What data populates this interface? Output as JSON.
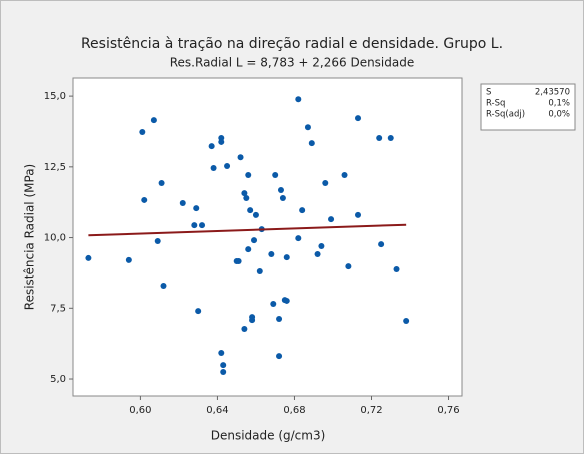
{
  "chart_data": {
    "type": "scatter",
    "title": "Resistência à tração na direção radial e densidade. Grupo L.",
    "subtitle": "Res.Radial L = 8,783 + 2,266 Densidade",
    "x_label": "Densidade (g/cm3)",
    "y_label": "Resistência Radial (MPa)",
    "xlim": [
      0.565,
      0.767
    ],
    "ylim": [
      4.4,
      15.64
    ],
    "xticks": [
      {
        "value": 0.6,
        "label": "0,60"
      },
      {
        "value": 0.64,
        "label": "0,64"
      },
      {
        "value": 0.68,
        "label": "0,68"
      },
      {
        "value": 0.72,
        "label": "0,72"
      },
      {
        "value": 0.76,
        "label": "0,76"
      }
    ],
    "yticks": [
      {
        "value": 5,
        "label": "5,0"
      },
      {
        "value": 7.5,
        "label": "7,5"
      },
      {
        "value": 10,
        "label": "10,0"
      },
      {
        "value": 12.5,
        "label": "12,5"
      },
      {
        "value": 15,
        "label": "15,0"
      }
    ],
    "color": "#0b5aa8",
    "x": [
      0.573,
      0.594,
      0.601,
      0.602,
      0.607,
      0.609,
      0.611,
      0.612,
      0.622,
      0.628,
      0.629,
      0.63,
      0.632,
      0.637,
      0.638,
      0.642,
      0.642,
      0.642,
      0.643,
      0.643,
      0.645,
      0.65,
      0.651,
      0.652,
      0.654,
      0.655,
      0.654,
      0.656,
      0.656,
      0.657,
      0.658,
      0.658,
      0.659,
      0.66,
      0.662,
      0.663,
      0.668,
      0.67,
      0.669,
      0.672,
      0.672,
      0.673,
      0.674,
      0.675,
      0.676,
      0.676,
      0.682,
      0.682,
      0.684,
      0.687,
      0.689,
      0.692,
      0.694,
      0.696,
      0.699,
      0.706,
      0.708,
      0.713,
      0.713,
      0.724,
      0.725,
      0.73,
      0.733,
      0.738
    ],
    "values": [
      9.28,
      9.21,
      13.73,
      11.33,
      14.15,
      9.88,
      11.93,
      8.29,
      11.22,
      10.44,
      11.04,
      7.4,
      10.44,
      13.23,
      12.46,
      13.52,
      13.38,
      5.92,
      5.49,
      5.25,
      12.53,
      9.17,
      9.17,
      12.84,
      11.57,
      11.4,
      6.77,
      12.21,
      9.59,
      10.97,
      7.08,
      7.19,
      9.91,
      10.8,
      8.82,
      10.3,
      9.42,
      12.21,
      7.65,
      7.12,
      5.81,
      11.68,
      11.4,
      7.79,
      7.76,
      9.31,
      14.89,
      9.98,
      10.97,
      13.9,
      13.34,
      9.42,
      9.7,
      11.93,
      10.65,
      12.21,
      8.99,
      14.22,
      10.8,
      13.52,
      9.77,
      13.52,
      8.89,
      7.05
    ],
    "fit": {
      "color": "#8b1a1a",
      "x": [
        0.573,
        0.738
      ],
      "values": [
        10.08,
        10.455
      ]
    },
    "stats": [
      [
        "S",
        "2,43570"
      ],
      [
        "R-Sq",
        "0,1%"
      ],
      [
        "R-Sq(adj)",
        "0,0%"
      ]
    ]
  }
}
